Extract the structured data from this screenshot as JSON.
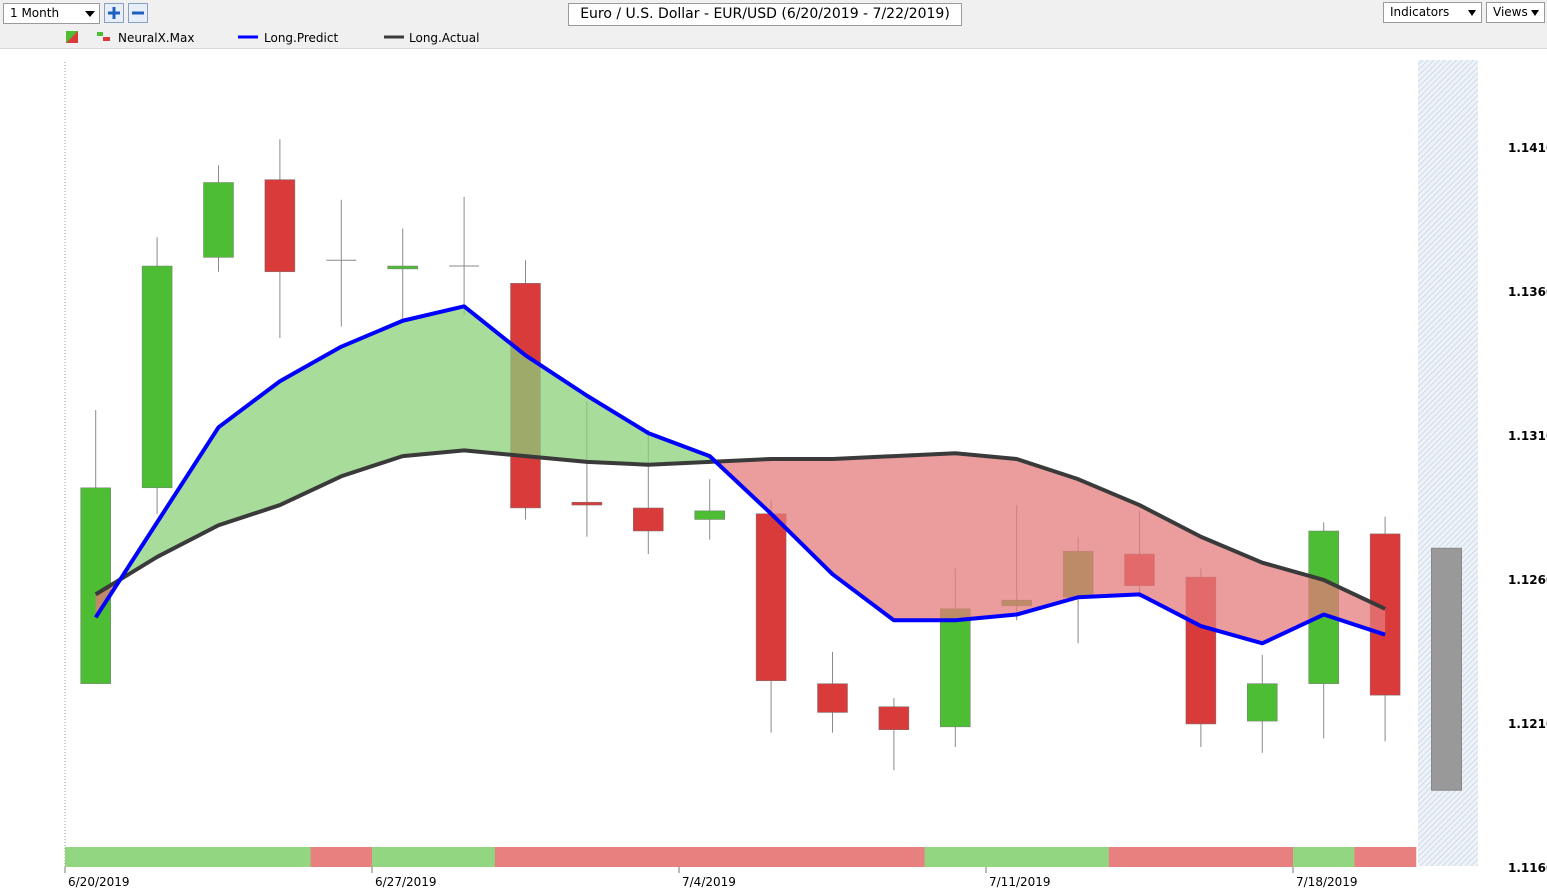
{
  "toolbar": {
    "period": "1 Month",
    "indicators": "Indicators",
    "views": "Views"
  },
  "chart_data": {
    "type": "candlestick",
    "title": "Euro / U.S. Dollar - EUR/USD (6/20/2019 - 7/22/2019)",
    "categories": [
      "6/20/2019",
      null,
      null,
      null,
      null,
      "6/27/2019",
      null,
      null,
      null,
      null,
      "7/4/2019",
      null,
      null,
      null,
      null,
      "7/11/2019",
      null,
      null,
      null,
      null,
      "7/18/2019",
      null
    ],
    "series": [
      {
        "name": "NeuralX.Max",
        "up_color": "#4dbd33",
        "down_color": "#d93a3a",
        "doji_color": "#8a8a8a",
        "open": [
          1.1224,
          1.1292,
          1.1372,
          1.1399,
          1.1371,
          1.1368,
          1.1369,
          1.1363,
          1.1287,
          1.1285,
          1.1281,
          1.1283,
          1.1224,
          1.1216,
          1.1209,
          1.1251,
          1.1254,
          1.1269,
          1.1261,
          1.1211,
          1.1224,
          1.1276
        ],
        "high": [
          1.1319,
          1.1379,
          1.1404,
          1.1413,
          1.1392,
          1.1382,
          1.1393,
          1.1371,
          1.1322,
          1.1312,
          1.1295,
          1.1288,
          1.1235,
          1.1219,
          1.1264,
          1.1286,
          1.1275,
          1.1284,
          1.1264,
          1.1234,
          1.128,
          1.1282
        ],
        "low": [
          1.1224,
          1.1283,
          1.1367,
          1.1344,
          1.1348,
          1.135,
          1.1352,
          1.1281,
          1.1275,
          1.1269,
          1.1274,
          1.1207,
          1.1207,
          1.1194,
          1.1202,
          1.1246,
          1.1238,
          1.1254,
          1.1202,
          1.12,
          1.1205,
          1.1204
        ],
        "close": [
          1.1292,
          1.1369,
          1.1398,
          1.1367,
          1.1371,
          1.1369,
          1.1369,
          1.1285,
          1.1286,
          1.1277,
          1.1284,
          1.1225,
          1.1214,
          1.1208,
          1.125,
          1.1253,
          1.127,
          1.1258,
          1.121,
          1.1224,
          1.1277,
          1.122
        ]
      },
      {
        "name": "Long.Predict",
        "color": "#0000ff",
        "values": [
          1.1247,
          1.128,
          1.1313,
          1.1329,
          1.1341,
          1.135,
          1.1355,
          1.1338,
          1.1324,
          1.1311,
          1.1303,
          1.1283,
          1.1262,
          1.1246,
          1.1246,
          1.1248,
          1.1254,
          1.1255,
          1.1244,
          1.1238,
          1.1248,
          1.1241
        ]
      },
      {
        "name": "Long.Actual",
        "color": "#3a3a3a",
        "values": [
          1.1255,
          1.1268,
          1.1279,
          1.1286,
          1.1296,
          1.1303,
          1.1305,
          1.1303,
          1.1301,
          1.13,
          1.1301,
          1.1302,
          1.1302,
          1.1303,
          1.1304,
          1.1302,
          1.1295,
          1.1286,
          1.1275,
          1.1266,
          1.126,
          1.125
        ]
      }
    ],
    "fill_up_color": "#89d079",
    "fill_down_color": "#e47b7b",
    "signal_colors": [
      "#92d681",
      "#92d681",
      "#92d681",
      "#92d681",
      "#e98080",
      "#92d681",
      "#92d681",
      "#e98080",
      "#e98080",
      "#e98080",
      "#e98080",
      "#e98080",
      "#e98080",
      "#e98080",
      "#92d681",
      "#92d681",
      "#92d681",
      "#e98080",
      "#e98080",
      "#e98080",
      "#92d681",
      "#e98080"
    ],
    "forecast": {
      "high": 1.1271,
      "low": 1.1187,
      "color": "#999999"
    },
    "ylim": [
      1.116,
      1.1444
    ],
    "yticks": [
      {
        "value": 1.116,
        "label": "1.1160"
      },
      {
        "value": 1.121,
        "label": "1.1210"
      },
      {
        "value": 1.126,
        "label": "1.1260"
      },
      {
        "value": 1.131,
        "label": "1.1310"
      },
      {
        "value": 1.136,
        "label": "1.1360"
      },
      {
        "value": 1.141,
        "label": "1.1410"
      }
    ]
  }
}
